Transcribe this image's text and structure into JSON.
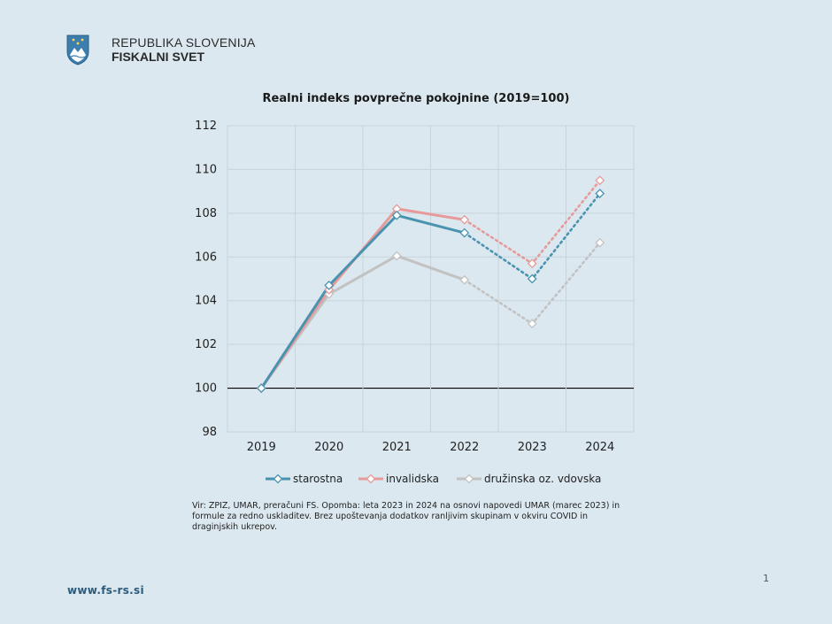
{
  "header": {
    "org_line1": "REPUBLIKA SLOVENIJA",
    "org_line2": "FISKALNI SVET"
  },
  "footer": {
    "url": "www.fs-rs.si",
    "page_number": "1"
  },
  "note": "Vir: ZPIZ, UMAR, preračuni FS. Opomba: leta 2023 in 2024 na osnovi napovedi UMAR (marec 2023) in formule za redno uskladitev. Brez upoštevanja dodatkov ranljivim skupinam v okviru COVID in draginjskih ukrepov.",
  "colors": {
    "background": "#dbe8ef",
    "starostna": "#4a93b0",
    "invalidska": "#e79a9a",
    "druzinska": "#c2c2c2"
  },
  "chart_data": {
    "type": "line",
    "title": "Realni indeks povprečne pokojnine (2019=100)",
    "xlabel": "",
    "ylabel": "",
    "categories": [
      "2019",
      "2020",
      "2021",
      "2022",
      "2023",
      "2024"
    ],
    "ylim": [
      98,
      112
    ],
    "yticks": [
      "98",
      "100",
      "102",
      "104",
      "106",
      "108",
      "110",
      "112"
    ],
    "grid": true,
    "legend_position": "bottom",
    "projection_from_index": 3,
    "series": [
      {
        "name": "starostna",
        "color": "#4a93b0",
        "values": [
          100.0,
          104.7,
          107.9,
          107.1,
          105.0,
          108.9
        ]
      },
      {
        "name": "invalidska",
        "color": "#e79a9a",
        "values": [
          100.0,
          104.5,
          108.2,
          107.7,
          105.7,
          109.5
        ]
      },
      {
        "name": "družinska oz. vdovska",
        "color": "#c2c2c2",
        "values": [
          100.0,
          104.3,
          106.05,
          104.95,
          102.95,
          106.65
        ]
      }
    ]
  }
}
